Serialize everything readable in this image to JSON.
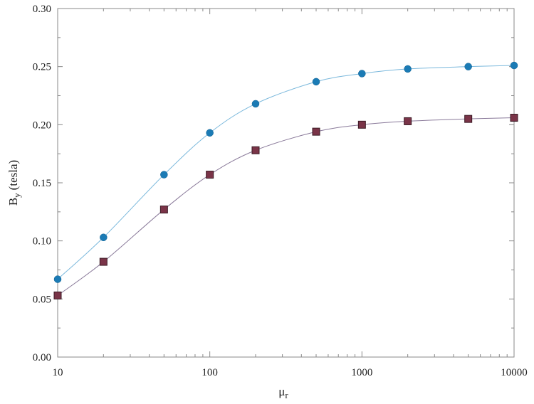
{
  "chart_data": {
    "type": "line",
    "title": "",
    "xlabel": "μ",
    "xlabel_sub": "r",
    "ylabel": "B",
    "ylabel_sub": "y",
    "ylabel_unit": "(tesla)",
    "x_scale": "log",
    "xlim": [
      10,
      10000
    ],
    "ylim": [
      0,
      0.3
    ],
    "grid": false,
    "legend": "none",
    "x_tick_labels": [
      "10",
      "100",
      "1000",
      "10000"
    ],
    "x_ticks": [
      10,
      100,
      1000,
      10000
    ],
    "y_tick_labels": [
      "0.00",
      "0.05",
      "0.10",
      "0.15",
      "0.20",
      "0.25",
      "0.30"
    ],
    "y_ticks": [
      0,
      0.05,
      0.1,
      0.15,
      0.2,
      0.25,
      0.3
    ],
    "x": [
      10,
      20,
      50,
      100,
      200,
      500,
      1000,
      2000,
      5000,
      10000
    ],
    "series": [
      {
        "marker": "circle",
        "color": "#1b7bb5",
        "line_color": "#7ab8dc",
        "values": [
          0.067,
          0.103,
          0.157,
          0.193,
          0.218,
          0.237,
          0.244,
          0.248,
          0.25,
          0.251
        ]
      },
      {
        "marker": "square",
        "color": "#7a3448",
        "line_color": "#8a7a9a",
        "values": [
          0.053,
          0.082,
          0.127,
          0.157,
          0.178,
          0.194,
          0.2,
          0.203,
          0.205,
          0.206
        ]
      }
    ]
  }
}
